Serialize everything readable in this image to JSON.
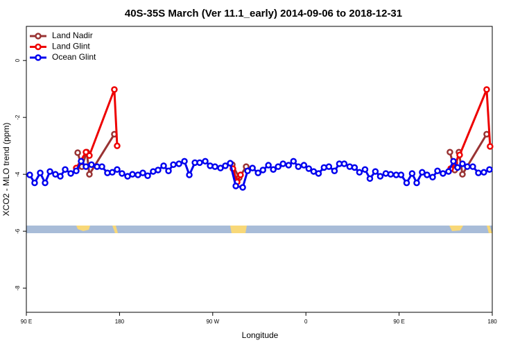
{
  "chart_data": {
    "type": "line",
    "title": "40S-35S March (Ver 11.1_early)   2014-09-06 to 2018-12-31",
    "xlabel": "Longitude",
    "ylabel": "XCO2 - MLO trend (ppm)",
    "xlim": [
      90,
      540
    ],
    "ylim": [
      -8.85,
      1.2
    ],
    "xticks": [
      {
        "value": 90,
        "label": "90 E"
      },
      {
        "value": 180,
        "label": "180"
      },
      {
        "value": 270,
        "label": "90 W"
      },
      {
        "value": 360,
        "label": "0"
      },
      {
        "value": 450,
        "label": "90 E"
      },
      {
        "value": 540,
        "label": "180"
      }
    ],
    "yticks": [
      0,
      -2,
      -4,
      -6,
      -8
    ],
    "legend": "top-left",
    "series": [
      {
        "name": "Land Nadir",
        "color": "#993333",
        "x": [
          139.6,
          143.6,
          148.3,
          150.9,
          175.0,
          null,
          288.9,
          295.6,
          302.3,
          null,
          499.1,
          503.8,
          507.8,
          511.2,
          534.6
        ],
        "values": [
          -3.24,
          -3.73,
          -3.22,
          -4.0,
          -2.59,
          null,
          -3.66,
          -4.12,
          -3.73,
          null,
          -3.22,
          -3.85,
          -3.22,
          -4.0,
          -2.59
        ]
      },
      {
        "name": "Land Glint",
        "color": "#ee0000",
        "x": [
          138.2,
          147.6,
          150.9,
          175.0,
          177.7,
          null,
          289.5,
          293.6,
          296.9,
          null,
          499.8,
          503.8,
          508.5,
          534.6,
          537.9
        ],
        "values": [
          -3.78,
          -3.22,
          -3.34,
          -1.02,
          -3.0,
          null,
          -3.8,
          -4.27,
          -4.02,
          null,
          -3.8,
          -3.61,
          -3.32,
          -1.02,
          -3.02
        ]
      },
      {
        "name": "Ocean Glint",
        "color": "#0000ee",
        "x": [
          93.3,
          98.0,
          103.4,
          108.1,
          112.8,
          118.1,
          122.8,
          127.5,
          132.9,
          138.2,
          142.9,
          147.6,
          152.9,
          158.3,
          163.0,
          168.3,
          173.0,
          177.7,
          182.4,
          187.8,
          192.5,
          197.8,
          202.5,
          207.2,
          212.5,
          217.2,
          222.6,
          227.3,
          232.0,
          237.4,
          242.7,
          247.4,
          252.8,
          257.4,
          262.8,
          267.5,
          272.2,
          277.5,
          282.2,
          286.9,
          292.3,
          299.0,
          303.7,
          308.4,
          313.8,
          318.5,
          323.8,
          328.5,
          333.2,
          337.9,
          343.3,
          348.0,
          352.7,
          358.1,
          362.8,
          367.5,
          372.2,
          377.5,
          382.2,
          387.6,
          392.3,
          397.0,
          402.3,
          407.0,
          411.7,
          417.1,
          421.8,
          427.1,
          431.8,
          437.2,
          441.9,
          447.2,
          451.9,
          457.3,
          462.6,
          467.0,
          472.3,
          477.0,
          482.4,
          487.1,
          492.4,
          497.8,
          502.5,
          506.5,
          511.2,
          515.9,
          521.2,
          526.6,
          531.9,
          537.3
        ],
        "values": [
          -4.02,
          -4.3,
          -3.95,
          -4.3,
          -3.9,
          -4.0,
          -4.07,
          -3.83,
          -3.97,
          -3.88,
          -3.54,
          -3.73,
          -3.66,
          -3.73,
          -3.73,
          -3.95,
          -3.93,
          -3.83,
          -3.97,
          -4.07,
          -4.0,
          -4.02,
          -3.95,
          -4.05,
          -3.9,
          -3.85,
          -3.7,
          -3.88,
          -3.66,
          -3.63,
          -3.54,
          -4.02,
          -3.59,
          -3.59,
          -3.54,
          -3.7,
          -3.73,
          -3.78,
          -3.7,
          -3.61,
          -4.41,
          -4.46,
          -3.88,
          -3.78,
          -3.95,
          -3.85,
          -3.68,
          -3.83,
          -3.73,
          -3.63,
          -3.68,
          -3.54,
          -3.73,
          -3.68,
          -3.8,
          -3.9,
          -3.97,
          -3.76,
          -3.73,
          -3.88,
          -3.63,
          -3.63,
          -3.73,
          -3.76,
          -3.93,
          -3.83,
          -4.15,
          -3.9,
          -4.07,
          -3.97,
          -4.0,
          -4.02,
          -4.02,
          -4.3,
          -3.97,
          -4.3,
          -3.93,
          -4.02,
          -4.1,
          -3.88,
          -3.97,
          -3.9,
          -3.54,
          -3.76,
          -3.63,
          -3.73,
          -3.73,
          -3.95,
          -3.93,
          -3.83
        ]
      }
    ]
  }
}
